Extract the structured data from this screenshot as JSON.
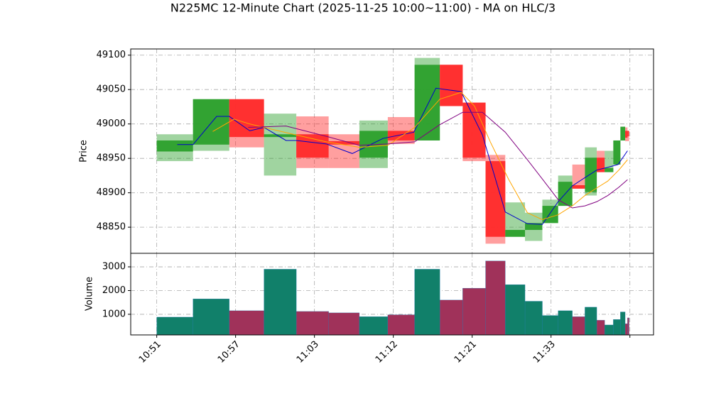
{
  "chart_data": [
    {
      "type": "candlestick",
      "title": "N225MC 12-Minute Chart (2025-11-25 10:00~11:00) - MA on HLC/3",
      "y_label": "Price",
      "x_start": [
        0,
        0.46,
        0.92,
        1.36,
        1.77,
        2.18,
        2.57,
        2.93,
        3.27,
        3.59,
        3.88,
        4.17,
        4.42,
        4.67,
        4.89,
        5.09,
        5.27,
        5.43,
        5.58,
        5.68,
        5.79,
        5.88,
        5.94,
        5.97
      ],
      "x_end": [
        0.46,
        0.92,
        1.36,
        1.77,
        2.18,
        2.57,
        2.93,
        3.27,
        3.59,
        3.88,
        4.17,
        4.42,
        4.67,
        4.89,
        5.09,
        5.27,
        5.43,
        5.58,
        5.68,
        5.79,
        5.88,
        5.94,
        5.97,
        5.99
      ],
      "open": [
        48960,
        48970,
        49036,
        48981,
        48985,
        48975,
        48951,
        48990,
        48976,
        49086,
        49031,
        48946,
        48836,
        48846,
        48856,
        48881,
        48911,
        48901,
        48951,
        48930,
        48941,
        48976,
        48990,
        48990
      ],
      "close": [
        48976,
        49036,
        48981,
        48985,
        48951,
        48970,
        48990,
        48976,
        49086,
        49026,
        48951,
        48836,
        48846,
        48856,
        48881,
        48916,
        48906,
        48951,
        48930,
        48936,
        48976,
        48996,
        48980,
        48982
      ],
      "high": [
        48985,
        49036,
        49036,
        49015,
        49011,
        48985,
        49005,
        49010,
        49096,
        49086,
        49031,
        48955,
        48886,
        48871,
        48890,
        48925,
        48941,
        48966,
        48961,
        48961,
        48976,
        48996,
        48995,
        48990
      ],
      "low": [
        48946,
        48961,
        48966,
        48925,
        48936,
        48936,
        48936,
        48971,
        48976,
        49026,
        48946,
        48826,
        48836,
        48830,
        48856,
        48881,
        48906,
        48896,
        48930,
        48930,
        48941,
        48976,
        48975,
        48975
      ],
      "up_color": "#2ca02c",
      "down_color": "#ff2a2a",
      "lines": [
        {
          "color": "#0000cc",
          "x": [
            0.26,
            0.46,
            0.76,
            0.92,
            1.18,
            1.36,
            1.64,
            1.77,
            2.15,
            2.48,
            2.87,
            3.26,
            3.54,
            3.86,
            4.13,
            4.42,
            4.7,
            4.89,
            5.09,
            5.27,
            5.43,
            5.58,
            5.72,
            5.85,
            5.97
          ],
          "values": [
            48970,
            48970,
            49011,
            49011,
            48990,
            48995,
            48976,
            48976,
            48971,
            48957,
            48979,
            48988,
            49052,
            49047,
            48984,
            48872,
            48855,
            48854,
            48887,
            48910,
            48922,
            48933,
            48937,
            48941,
            48961
          ]
        },
        {
          "color": "#ffa500",
          "x": [
            0.71,
            0.98,
            1.18,
            1.36,
            1.77,
            2.15,
            2.57,
            2.93,
            3.27,
            3.59,
            3.86,
            4.03,
            4.23,
            4.46,
            4.7,
            4.89,
            5.09,
            5.27,
            5.43,
            5.58,
            5.72,
            5.86,
            5.97
          ],
          "values": [
            48989,
            49007,
            49000,
            48995,
            48984,
            48974,
            48966,
            48969,
            48995,
            49036,
            49046,
            49026,
            48974,
            48920,
            48871,
            48861,
            48868,
            48881,
            48896,
            48907,
            48917,
            48933,
            48948
          ]
        },
        {
          "color": "#800080",
          "x": [
            1.16,
            1.64,
            2.15,
            2.57,
            2.93,
            3.27,
            3.59,
            3.88,
            4.13,
            4.42,
            4.7,
            4.89,
            5.09,
            5.27,
            5.43,
            5.58,
            5.72,
            5.86,
            5.97
          ],
          "values": [
            48995,
            48997,
            48982,
            48969,
            48971,
            48974,
            48999,
            49017,
            49017,
            48988,
            48948,
            48920,
            48890,
            48878,
            48881,
            48887,
            48896,
            48908,
            48919
          ]
        }
      ],
      "xlim": [
        -0.33,
        6.3
      ],
      "ylim": [
        48812,
        49109
      ],
      "yticks": [
        48850,
        48900,
        48950,
        49000,
        49050,
        49100
      ],
      "grid": true
    },
    {
      "type": "bar",
      "y_label": "Volume",
      "values": [
        880,
        1650,
        1150,
        2900,
        1120,
        1060,
        900,
        980,
        2900,
        1600,
        2100,
        3250,
        2250,
        1550,
        950,
        1150,
        900,
        1300,
        750,
        550,
        780,
        1100,
        600,
        850
      ],
      "up_color": "#11806a",
      "down_color": "#a0325a",
      "xlim": [
        -0.33,
        6.3
      ],
      "ylim": [
        130,
        3570
      ],
      "yticks": [
        1000,
        2000,
        3000
      ],
      "xticks": [
        {
          "value": 0,
          "label": "10:51"
        },
        {
          "value": 1,
          "label": "10:57"
        },
        {
          "value": 2,
          "label": "11:03"
        },
        {
          "value": 3,
          "label": "11:12"
        },
        {
          "value": 4,
          "label": "11:21"
        },
        {
          "value": 5,
          "label": "11:33"
        },
        {
          "value": 6,
          "label": null
        }
      ],
      "grid": true
    }
  ]
}
